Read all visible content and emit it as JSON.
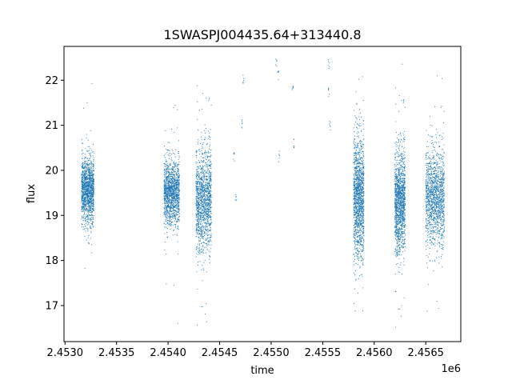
{
  "chart_data": {
    "type": "scatter",
    "title": "1SWASPJ004435.64+313440.8",
    "xlabel": "time",
    "ylabel": "flux",
    "x_offset_label": "1e6",
    "xlim": [
      2.45299,
      2.45684
    ],
    "ylim": [
      16.2,
      22.75
    ],
    "x_ticks": [
      2.453,
      2.4535,
      2.454,
      2.4545,
      2.455,
      2.4555,
      2.456,
      2.4565
    ],
    "x_tick_labels": [
      "2.4530",
      "2.4535",
      "2.4540",
      "2.4545",
      "2.4550",
      "2.4555",
      "2.4560",
      "2.4565"
    ],
    "y_ticks": [
      17,
      18,
      19,
      20,
      21,
      22
    ],
    "y_tick_labels": [
      "17",
      "18",
      "19",
      "20",
      "21",
      "22"
    ],
    "grid": false,
    "marker_color": "#1f77b4",
    "series": [
      {
        "clusters": [
          {
            "x_range": [
              2.45316,
              2.45328
            ],
            "y_mean": 19.55,
            "y_spread": 0.35
          },
          {
            "x_range": [
              2.45396,
              2.45411
            ],
            "y_mean": 19.5,
            "y_spread": 0.35
          },
          {
            "x_range": [
              2.45427,
              2.45442
            ],
            "y_mean": 19.35,
            "y_spread": 0.55
          },
          {
            "x_range": [
              2.4558,
              2.4559
            ],
            "y_mean": 19.4,
            "y_spread": 0.65
          },
          {
            "x_range": [
              2.4562,
              2.4563
            ],
            "y_mean": 19.3,
            "y_spread": 0.55
          },
          {
            "x_range": [
              2.4565,
              2.45668
            ],
            "y_mean": 19.4,
            "y_spread": 0.5
          }
        ],
        "sparse_points": [
          {
            "x": 2.45464,
            "y": 20.3
          },
          {
            "x": 2.45466,
            "y": 19.4
          },
          {
            "x": 2.45472,
            "y": 21.0
          },
          {
            "x": 2.45473,
            "y": 22.05
          },
          {
            "x": 2.45505,
            "y": 22.4
          },
          {
            "x": 2.45507,
            "y": 22.1
          },
          {
            "x": 2.45508,
            "y": 20.3
          },
          {
            "x": 2.45521,
            "y": 21.8
          },
          {
            "x": 2.45522,
            "y": 20.6
          },
          {
            "x": 2.45556,
            "y": 21.7
          },
          {
            "x": 2.45556,
            "y": 22.35
          },
          {
            "x": 2.45557,
            "y": 21.0
          }
        ]
      }
    ]
  }
}
